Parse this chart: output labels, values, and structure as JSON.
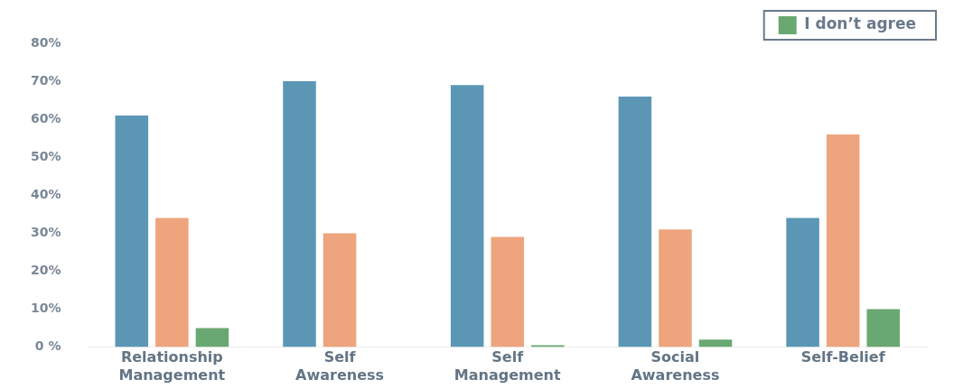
{
  "chart_data": {
    "type": "bar",
    "categories": [
      "Relationship Management",
      "Self Awareness",
      "Self Management",
      "Social Awareness",
      "Self-Belief"
    ],
    "series": [
      {
        "color": "#5b97b5",
        "values": [
          61,
          70,
          69,
          66,
          34
        ]
      },
      {
        "color": "#eea47c",
        "values": [
          34,
          30,
          29,
          31,
          56
        ]
      },
      {
        "name": "I don’t agree",
        "color": "#6aa872",
        "values": [
          5,
          0,
          0.5,
          2,
          10
        ]
      }
    ],
    "ylim": [
      0,
      80
    ],
    "yticks": [
      {
        "value": 0,
        "label": "0 %"
      },
      {
        "value": 10,
        "label": "10%"
      },
      {
        "value": 20,
        "label": "20%"
      },
      {
        "value": 30,
        "label": "30%"
      },
      {
        "value": 40,
        "label": "40%"
      },
      {
        "value": 50,
        "label": "50%"
      },
      {
        "value": 60,
        "label": "60%"
      },
      {
        "value": 70,
        "label": "70%"
      },
      {
        "value": 80,
        "label": "80%"
      }
    ],
    "grid": false,
    "legend": "top right"
  }
}
